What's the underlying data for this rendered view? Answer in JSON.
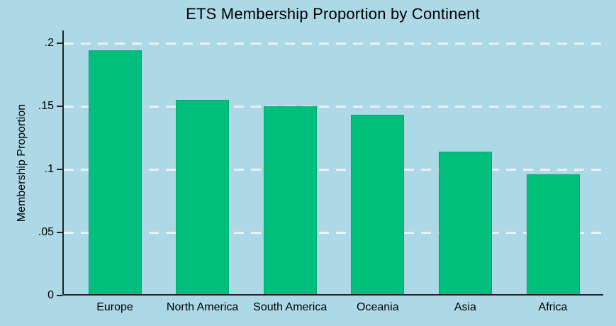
{
  "chart_data": {
    "type": "bar",
    "title": "ETS Membership Proportion by Continent",
    "xlabel": "",
    "ylabel": "Membership Proportion",
    "categories": [
      "Europe",
      "North America",
      "South America",
      "Oceania",
      "Asia",
      "Africa"
    ],
    "values": [
      0.193,
      0.154,
      0.149,
      0.142,
      0.113,
      0.095
    ],
    "yticks": [
      0,
      0.05,
      0.1,
      0.15,
      0.2
    ],
    "ytick_labels": [
      "0",
      ".05",
      ".1",
      ".15",
      ".2"
    ],
    "ylim": [
      0,
      0.21
    ],
    "grid": {
      "horizontal": true,
      "style": "dashed",
      "gridline_color": "#e9f2f4"
    },
    "legend": "none",
    "colors": {
      "bar_fill": "#00bf7d",
      "bar_outline": "#00a870",
      "background": "#add8e6",
      "axis": "#222222",
      "text": "#000000"
    }
  }
}
